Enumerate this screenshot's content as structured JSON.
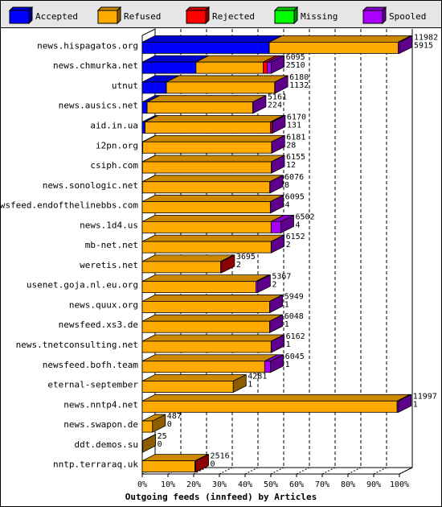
{
  "chart_data": {
    "type": "bar",
    "orientation": "horizontal",
    "stacked": true,
    "grid": true,
    "legend_position": "top",
    "xlabel": "Outgoing feeds (innfeed) by Articles",
    "x_ticks": [
      "0%",
      "10%",
      "20%",
      "30%",
      "40%",
      "50%",
      "60%",
      "70%",
      "80%",
      "90%",
      "100%"
    ],
    "xlim": [
      0,
      100
    ],
    "series": [
      {
        "name": "Accepted",
        "color": "#0000ff"
      },
      {
        "name": "Refused",
        "color": "#ffaa00"
      },
      {
        "name": "Rejected",
        "color": "#ff0000"
      },
      {
        "name": "Missing",
        "color": "#00ff00"
      },
      {
        "name": "Spooled",
        "color": "#aa00ff"
      }
    ],
    "rows": [
      {
        "label": "news.hispagatos.org",
        "offered": "11982",
        "accepted": "5915",
        "pct": [
          49.4,
          50.1,
          0,
          0,
          0.5
        ]
      },
      {
        "label": "news.chmurka.net",
        "offered": "6095",
        "accepted": "2510",
        "pct": [
          20.9,
          26.1,
          1.6,
          0,
          1.6
        ]
      },
      {
        "label": "utnut",
        "offered": "6180",
        "accepted": "1132",
        "pct": [
          9.4,
          42.1,
          0,
          0,
          0.1
        ]
      },
      {
        "label": "news.ausics.net",
        "offered": "5161",
        "accepted": "224",
        "pct": [
          1.9,
          41.1,
          0,
          0,
          0.1
        ]
      },
      {
        "label": "aid.in.ua",
        "offered": "6170",
        "accepted": "131",
        "pct": [
          1.1,
          48.8,
          0.6,
          0,
          0.1
        ]
      },
      {
        "label": "i2pn.org",
        "offered": "6181",
        "accepted": "28",
        "pct": [
          0.2,
          50.1,
          0,
          0,
          0.1
        ]
      },
      {
        "label": "csiph.com",
        "offered": "6155",
        "accepted": "12",
        "pct": [
          0.1,
          50.1,
          0,
          0,
          0.1
        ]
      },
      {
        "label": "news.sonologic.net",
        "offered": "6076",
        "accepted": "8",
        "pct": [
          0.1,
          49.5,
          0,
          0,
          0.1
        ]
      },
      {
        "label": "newsfeed.endofthelinebbs.com",
        "offered": "6095",
        "accepted": "4",
        "pct": [
          0,
          49.8,
          0,
          0,
          0.1
        ]
      },
      {
        "label": "news.1d4.us",
        "offered": "6502",
        "accepted": "4",
        "pct": [
          0,
          50.1,
          0,
          0,
          3.8
        ]
      },
      {
        "label": "mb-net.net",
        "offered": "6152",
        "accepted": "2",
        "pct": [
          0,
          50.1,
          0,
          0,
          0.1
        ]
      },
      {
        "label": "weretis.net",
        "offered": "3695",
        "accepted": "2",
        "pct": [
          0,
          30.5,
          0.4,
          0,
          0
        ]
      },
      {
        "label": "usenet.goja.nl.eu.org",
        "offered": "5367",
        "accepted": "2",
        "pct": [
          0,
          44.2,
          0,
          0,
          0.6
        ]
      },
      {
        "label": "news.quux.org",
        "offered": "5949",
        "accepted": "1",
        "pct": [
          0,
          49.5,
          0,
          0,
          0.1
        ]
      },
      {
        "label": "newsfeed.xs3.de",
        "offered": "6048",
        "accepted": "1",
        "pct": [
          0,
          49.5,
          0,
          0,
          0.1
        ]
      },
      {
        "label": "news.tnetconsulting.net",
        "offered": "6162",
        "accepted": "1",
        "pct": [
          0,
          50.1,
          0,
          0,
          0.1
        ]
      },
      {
        "label": "newsfeed.bofh.team",
        "offered": "6045",
        "accepted": "1",
        "pct": [
          0,
          47.6,
          0,
          0,
          2.3
        ]
      },
      {
        "label": "eternal-september",
        "offered": "4281",
        "accepted": "1",
        "pct": [
          0,
          35.4,
          0,
          0,
          0
        ]
      },
      {
        "label": "news.nntp4.net",
        "offered": "11997",
        "accepted": "1",
        "pct": [
          0,
          99.1,
          0,
          0,
          0.5
        ]
      },
      {
        "label": "news.swapon.de",
        "offered": "487",
        "accepted": "0",
        "pct": [
          0,
          4,
          0,
          0,
          0
        ]
      },
      {
        "label": "ddt.demos.su",
        "offered": "25",
        "accepted": "0",
        "pct": [
          0,
          0.2,
          0,
          0,
          0
        ]
      },
      {
        "label": "nntp.terraraq.uk",
        "offered": "2516",
        "accepted": "0",
        "pct": [
          0,
          20.5,
          0.3,
          0,
          0
        ]
      }
    ]
  }
}
